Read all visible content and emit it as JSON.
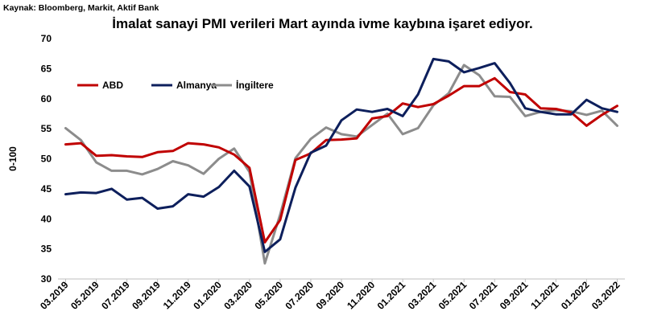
{
  "source": "Kaynak: Bloomberg, Markit, Aktif Bank",
  "chart_data": {
    "type": "line",
    "title": "İmalat sanayi PMI verileri Mart ayında ivme kaybına işaret ediyor.",
    "ylabel": "0-100",
    "xlabel": "",
    "ylim": [
      30,
      70
    ],
    "yticks": [
      30,
      35,
      40,
      45,
      50,
      55,
      60,
      65,
      70
    ],
    "grid": false,
    "legend_position": "top-left",
    "x": [
      "03.2019",
      "04.2019",
      "05.2019",
      "06.2019",
      "07.2019",
      "08.2019",
      "09.2019",
      "10.2019",
      "11.2019",
      "12.2019",
      "01.2020",
      "02.2020",
      "03.2020",
      "04.2020",
      "05.2020",
      "06.2020",
      "07.2020",
      "08.2020",
      "09.2020",
      "10.2020",
      "11.2020",
      "12.2020",
      "01.2021",
      "02.2021",
      "03.2021",
      "04.2021",
      "05.2021",
      "06.2021",
      "07.2021",
      "08.2021",
      "09.2021",
      "10.2021",
      "11.2021",
      "12.2021",
      "01.2022",
      "02.2022",
      "03.2022"
    ],
    "xtick_labels": [
      "03.2019",
      "05.2019",
      "07.2019",
      "09.2019",
      "11.2019",
      "01.2020",
      "03.2020",
      "05.2020",
      "07.2020",
      "09.2020",
      "11.2020",
      "01.2021",
      "03.2021",
      "05.2021",
      "07.2021",
      "09.2021",
      "11.2021",
      "01.2022",
      "03.2022"
    ],
    "series": [
      {
        "name": "ABD",
        "color": "#c00000",
        "values": [
          52.4,
          52.6,
          50.5,
          50.6,
          50.4,
          50.3,
          51.1,
          51.3,
          52.6,
          52.4,
          51.9,
          50.7,
          48.5,
          36.1,
          39.8,
          49.8,
          50.9,
          53.1,
          53.2,
          53.4,
          56.7,
          57.1,
          59.2,
          58.6,
          59.1,
          60.5,
          62.1,
          62.1,
          63.4,
          61.1,
          60.7,
          58.4,
          58.3,
          57.7,
          55.5,
          57.3,
          58.8
        ]
      },
      {
        "name": "Almanya",
        "color": "#0d1f5c",
        "values": [
          44.1,
          44.4,
          44.3,
          45.0,
          43.2,
          43.5,
          41.7,
          42.1,
          44.1,
          43.7,
          45.3,
          48.0,
          45.4,
          34.5,
          36.6,
          45.2,
          51.0,
          52.2,
          56.4,
          58.2,
          57.8,
          58.3,
          57.1,
          60.7,
          66.6,
          66.2,
          64.4,
          65.1,
          65.9,
          62.6,
          58.4,
          57.8,
          57.4,
          57.4,
          59.8,
          58.4,
          57.8
        ]
      },
      {
        "name": "İngiltere",
        "color": "#8c8c8c",
        "values": [
          55.1,
          53.1,
          49.4,
          48.0,
          48.0,
          47.4,
          48.3,
          49.6,
          48.9,
          47.5,
          50.0,
          51.7,
          47.8,
          32.6,
          40.7,
          50.1,
          53.3,
          55.2,
          54.1,
          53.7,
          55.6,
          57.5,
          54.1,
          55.1,
          58.9,
          60.9,
          65.6,
          63.9,
          60.4,
          60.3,
          57.1,
          57.8,
          58.1,
          57.9,
          57.3,
          58.0,
          55.5
        ]
      }
    ]
  }
}
